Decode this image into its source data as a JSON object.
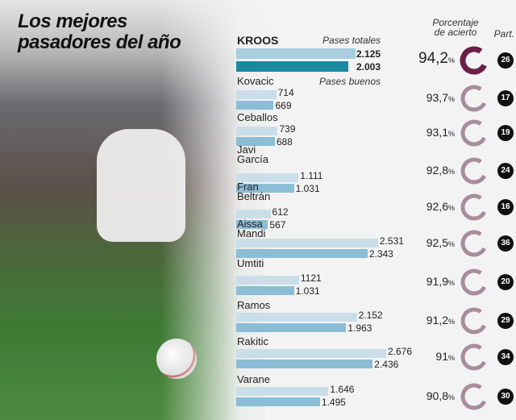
{
  "title_line1": "Los mejores",
  "title_line2": "pasadores del año",
  "headers": {
    "total": "Pases totales",
    "good": "Pases buenos",
    "pct": "Porcentaje de acierto",
    "part": "Part."
  },
  "colors": {
    "total_bar": "#c9dee9",
    "good_bar": "#8cbdd6",
    "kroos_total": "#a9cde0",
    "kroos_good": "#1a8aa2",
    "ring_highlight": "#6a1f46",
    "ring": "#a98c9c"
  },
  "chart_data": {
    "type": "bar",
    "categories": [
      "KROOS",
      "Kovacic",
      "Ceballos",
      "Javi García",
      "Fran Beltrán",
      "Aissa Mandi",
      "Umtiti",
      "Ramos",
      "Rakitic",
      "Varane"
    ],
    "series": [
      {
        "name": "Pases totales",
        "values": [
          2125,
          714,
          739,
          1111,
          612,
          2531,
          1121,
          2152,
          2676,
          1646
        ],
        "labels": [
          "2.125",
          "714",
          "739",
          "1.111",
          "612",
          "2.531",
          "1121",
          "2.152",
          "2.676",
          "1.646"
        ]
      },
      {
        "name": "Pases buenos",
        "values": [
          2003,
          669,
          688,
          1031,
          567,
          2343,
          1031,
          1963,
          2436,
          1495
        ],
        "labels": [
          "2.003",
          "669",
          "688",
          "1.031",
          "567",
          "2.343",
          "1.031",
          "1.963",
          "2.436",
          "1.495"
        ]
      }
    ],
    "percent": [
      "94,2",
      "93,7",
      "93,1",
      "92,8",
      "92,6",
      "92,5",
      "91,9",
      "91,2",
      "91",
      "90,8"
    ],
    "matches": [
      "26",
      "17",
      "19",
      "24",
      "16",
      "36",
      "20",
      "29",
      "34",
      "30"
    ]
  }
}
